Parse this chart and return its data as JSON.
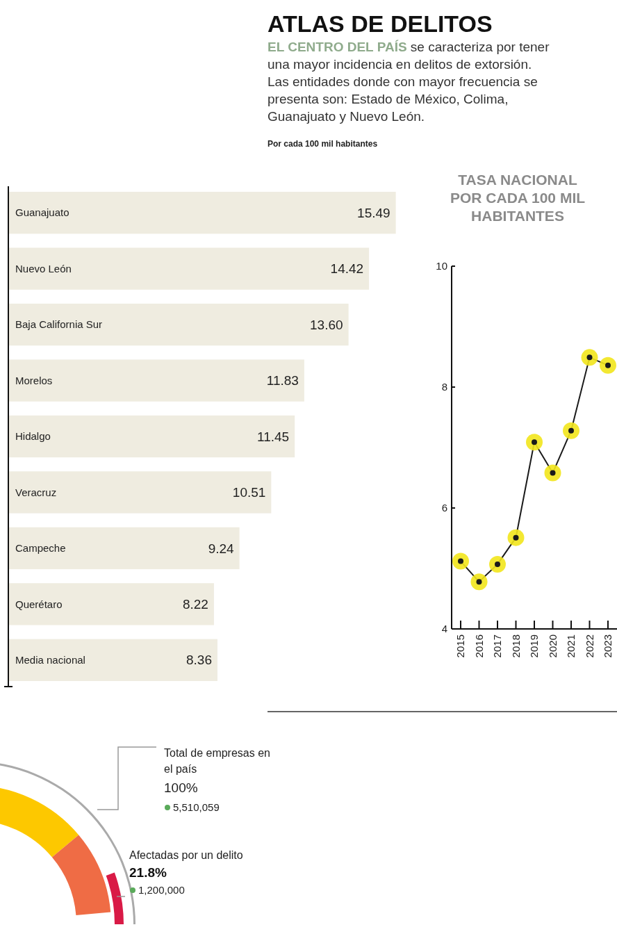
{
  "chart_data": [
    {
      "type": "bar",
      "title": "ATLAS DE DELITOS",
      "subtitle": "EL CENTRO DEL PAÍS se caracteriza por tener una mayor incidencia en delitos de extorsión. Las entidades donde con mayor frecuencia se presenta son: Estado de México, Colima, Guanajuato y Nuevo León.",
      "annotations": [
        "Por cada 100 mil habitantes"
      ],
      "categories": [
        "Guanajuato",
        "Nuevo León",
        "Baja California Sur",
        "Morelos",
        "Hidalgo",
        "Veracruz",
        "Campeche",
        "Querétaro",
        "Media nacional"
      ],
      "values": [
        15.49,
        14.42,
        13.6,
        11.83,
        11.45,
        10.51,
        9.24,
        8.22,
        8.36
      ],
      "value_labels": [
        "15.49",
        "14.42",
        "13.60",
        "11.83",
        "11.45",
        "10.51",
        "9.24",
        "8.22",
        "8.36"
      ],
      "color": "#efece0",
      "orientation": "horizontal"
    },
    {
      "type": "line",
      "title": "TASA NACIONAL POR CADA 100 MIL HABITANTES",
      "categories": [
        "2015",
        "2016",
        "2017",
        "2018",
        "2019",
        "2020",
        "2021",
        "2022",
        "2023"
      ],
      "series": [
        {
          "color": "#1a1a1a",
          "values": [
            5.12,
            4.78,
            5.07,
            5.51,
            7.09,
            6.58,
            7.28,
            8.49,
            8.36
          ]
        }
      ],
      "ylim": [
        4,
        10
      ],
      "yticks": [
        4,
        6,
        8,
        10
      ],
      "marker": "circle",
      "grid": false
    },
    {
      "type": "other",
      "annotations": [
        "Total de empresas en el país",
        "100%",
        "5,510,059",
        "Afectadas por un delito",
        "21.8%",
        "1,200,000"
      ]
    }
  ]
}
